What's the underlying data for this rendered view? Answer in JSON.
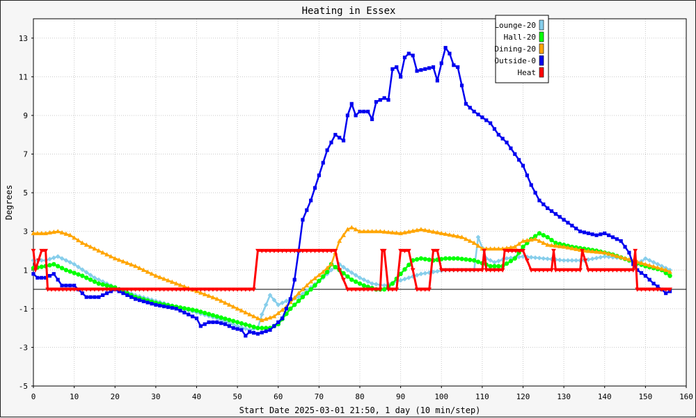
{
  "chart_data": {
    "type": "line",
    "title": "Heating in Essex",
    "xlabel": "Start Date 2025-03-01 21:50, 1 day (10 min/step)",
    "ylabel": "Degrees",
    "xlim": [
      0,
      160
    ],
    "ylim": [
      -5,
      14
    ],
    "x_ticks": [
      0,
      10,
      20,
      30,
      40,
      50,
      60,
      70,
      80,
      90,
      100,
      110,
      120,
      130,
      140,
      150,
      160
    ],
    "y_ticks": [
      -5,
      -3,
      -1,
      1,
      3,
      5,
      7,
      9,
      11,
      13
    ],
    "grid": true,
    "legend_position": "top-right",
    "series": [
      {
        "name": "Lounge-20",
        "color": "#87ceeb",
        "marker": "diamond",
        "points": [
          [
            0,
            1.5
          ],
          [
            3,
            1.5
          ],
          [
            6,
            1.7
          ],
          [
            10,
            1.3
          ],
          [
            15,
            0.6
          ],
          [
            20,
            0.1
          ],
          [
            25,
            -0.3
          ],
          [
            30,
            -0.6
          ],
          [
            35,
            -0.9
          ],
          [
            40,
            -1.2
          ],
          [
            45,
            -1.5
          ],
          [
            50,
            -1.9
          ],
          [
            53,
            -2.1
          ],
          [
            55,
            -2.0
          ],
          [
            56,
            -1.3
          ],
          [
            58,
            -0.3
          ],
          [
            60,
            -0.8
          ],
          [
            62,
            -0.6
          ],
          [
            65,
            -0.4
          ],
          [
            68,
            0.1
          ],
          [
            71,
            0.6
          ],
          [
            73,
            1.0
          ],
          [
            75,
            1.3
          ],
          [
            77,
            1.0
          ],
          [
            80,
            0.6
          ],
          [
            83,
            0.3
          ],
          [
            86,
            0.2
          ],
          [
            89,
            0.4
          ],
          [
            92,
            0.6
          ],
          [
            95,
            0.8
          ],
          [
            98,
            0.9
          ],
          [
            101,
            1.0
          ],
          [
            105,
            1.0
          ],
          [
            108,
            1.0
          ],
          [
            109,
            2.7
          ],
          [
            111,
            1.6
          ],
          [
            113,
            1.4
          ],
          [
            116,
            1.6
          ],
          [
            120,
            1.7
          ],
          [
            125,
            1.6
          ],
          [
            130,
            1.5
          ],
          [
            135,
            1.5
          ],
          [
            140,
            1.7
          ],
          [
            145,
            1.6
          ],
          [
            148,
            1.3
          ],
          [
            150,
            1.6
          ],
          [
            153,
            1.3
          ],
          [
            156,
            1.0
          ]
        ]
      },
      {
        "name": "Hall-20",
        "color": "#00ff00",
        "marker": "circle",
        "points": [
          [
            0,
            1.1
          ],
          [
            3,
            1.2
          ],
          [
            5,
            1.3
          ],
          [
            8,
            1.0
          ],
          [
            12,
            0.7
          ],
          [
            16,
            0.3
          ],
          [
            20,
            0.1
          ],
          [
            25,
            -0.4
          ],
          [
            30,
            -0.7
          ],
          [
            35,
            -0.9
          ],
          [
            40,
            -1.1
          ],
          [
            45,
            -1.4
          ],
          [
            50,
            -1.7
          ],
          [
            55,
            -2.0
          ],
          [
            58,
            -2.0
          ],
          [
            60,
            -1.8
          ],
          [
            63,
            -1.0
          ],
          [
            66,
            -0.4
          ],
          [
            69,
            0.2
          ],
          [
            72,
            0.9
          ],
          [
            73,
            1.3
          ],
          [
            75,
            1.0
          ],
          [
            78,
            0.5
          ],
          [
            81,
            0.2
          ],
          [
            84,
            0.0
          ],
          [
            86,
            0.0
          ],
          [
            88,
            0.3
          ],
          [
            90,
            0.8
          ],
          [
            93,
            1.5
          ],
          [
            95,
            1.6
          ],
          [
            98,
            1.5
          ],
          [
            101,
            1.6
          ],
          [
            104,
            1.6
          ],
          [
            108,
            1.5
          ],
          [
            112,
            1.2
          ],
          [
            115,
            1.2
          ],
          [
            118,
            1.6
          ],
          [
            120,
            2.2
          ],
          [
            122,
            2.6
          ],
          [
            124,
            2.9
          ],
          [
            126,
            2.7
          ],
          [
            128,
            2.4
          ],
          [
            132,
            2.2
          ],
          [
            135,
            2.1
          ],
          [
            138,
            2.0
          ],
          [
            142,
            1.8
          ],
          [
            146,
            1.5
          ],
          [
            150,
            1.2
          ],
          [
            154,
            1.0
          ],
          [
            156,
            0.7
          ]
        ]
      },
      {
        "name": "Dining-20",
        "color": "#ffa500",
        "marker": "triangle",
        "points": [
          [
            0,
            2.9
          ],
          [
            3,
            2.9
          ],
          [
            6,
            3.0
          ],
          [
            9,
            2.8
          ],
          [
            12,
            2.4
          ],
          [
            16,
            2.0
          ],
          [
            20,
            1.6
          ],
          [
            25,
            1.2
          ],
          [
            30,
            0.7
          ],
          [
            35,
            0.3
          ],
          [
            40,
            -0.1
          ],
          [
            45,
            -0.5
          ],
          [
            50,
            -1.0
          ],
          [
            54,
            -1.4
          ],
          [
            56,
            -1.6
          ],
          [
            59,
            -1.4
          ],
          [
            62,
            -0.9
          ],
          [
            65,
            -0.2
          ],
          [
            68,
            0.4
          ],
          [
            71,
            0.9
          ],
          [
            73,
            1.3
          ],
          [
            75,
            2.5
          ],
          [
            77,
            3.1
          ],
          [
            78,
            3.2
          ],
          [
            80,
            3.0
          ],
          [
            85,
            3.0
          ],
          [
            90,
            2.9
          ],
          [
            95,
            3.1
          ],
          [
            100,
            2.9
          ],
          [
            105,
            2.7
          ],
          [
            108,
            2.4
          ],
          [
            110,
            2.1
          ],
          [
            115,
            2.1
          ],
          [
            118,
            2.2
          ],
          [
            120,
            2.5
          ],
          [
            123,
            2.6
          ],
          [
            126,
            2.3
          ],
          [
            130,
            2.2
          ],
          [
            135,
            2.0
          ],
          [
            140,
            1.9
          ],
          [
            145,
            1.6
          ],
          [
            150,
            1.3
          ],
          [
            155,
            1.0
          ],
          [
            156,
            0.9
          ]
        ]
      },
      {
        "name": "Outside-0",
        "color": "#0000ee",
        "marker": "square",
        "points": [
          [
            0,
            0.8
          ],
          [
            1,
            0.6
          ],
          [
            3,
            0.6
          ],
          [
            5,
            0.8
          ],
          [
            6,
            0.5
          ],
          [
            7,
            0.2
          ],
          [
            10,
            0.2
          ],
          [
            13,
            -0.4
          ],
          [
            16,
            -0.4
          ],
          [
            20,
            0.0
          ],
          [
            25,
            -0.5
          ],
          [
            30,
            -0.8
          ],
          [
            35,
            -1.0
          ],
          [
            40,
            -1.5
          ],
          [
            41,
            -1.9
          ],
          [
            43,
            -1.7
          ],
          [
            45,
            -1.7
          ],
          [
            47,
            -1.8
          ],
          [
            49,
            -2.0
          ],
          [
            51,
            -2.1
          ],
          [
            52,
            -2.4
          ],
          [
            53,
            -2.2
          ],
          [
            55,
            -2.3
          ],
          [
            58,
            -2.1
          ],
          [
            61,
            -1.5
          ],
          [
            63,
            -0.5
          ],
          [
            64,
            0.5
          ],
          [
            65,
            2.0
          ],
          [
            66,
            3.6
          ],
          [
            68,
            4.6
          ],
          [
            70,
            5.9
          ],
          [
            72,
            7.2
          ],
          [
            74,
            8.0
          ],
          [
            76,
            7.7
          ],
          [
            77,
            9.0
          ],
          [
            78,
            9.6
          ],
          [
            79,
            9.0
          ],
          [
            80,
            9.2
          ],
          [
            82,
            9.2
          ],
          [
            83,
            8.8
          ],
          [
            84,
            9.7
          ],
          [
            86,
            9.9
          ],
          [
            87,
            9.8
          ],
          [
            88,
            11.4
          ],
          [
            89,
            11.5
          ],
          [
            90,
            11.0
          ],
          [
            91,
            12.0
          ],
          [
            92,
            12.2
          ],
          [
            93,
            12.1
          ],
          [
            94,
            11.3
          ],
          [
            96,
            11.4
          ],
          [
            98,
            11.5
          ],
          [
            99,
            10.8
          ],
          [
            100,
            11.7
          ],
          [
            101,
            12.5
          ],
          [
            102,
            12.2
          ],
          [
            103,
            11.6
          ],
          [
            104,
            11.5
          ],
          [
            106,
            9.6
          ],
          [
            108,
            9.2
          ],
          [
            110,
            8.9
          ],
          [
            112,
            8.6
          ],
          [
            114,
            8.0
          ],
          [
            116,
            7.6
          ],
          [
            118,
            7.0
          ],
          [
            120,
            6.4
          ],
          [
            122,
            5.4
          ],
          [
            124,
            4.6
          ],
          [
            126,
            4.2
          ],
          [
            128,
            3.9
          ],
          [
            130,
            3.6
          ],
          [
            132,
            3.3
          ],
          [
            134,
            3.0
          ],
          [
            136,
            2.9
          ],
          [
            138,
            2.8
          ],
          [
            140,
            2.9
          ],
          [
            142,
            2.7
          ],
          [
            144,
            2.5
          ],
          [
            146,
            1.9
          ],
          [
            147,
            1.3
          ],
          [
            148,
            1.0
          ],
          [
            150,
            0.7
          ],
          [
            152,
            0.3
          ],
          [
            154,
            0.0
          ],
          [
            155,
            -0.2
          ],
          [
            156,
            -0.1
          ]
        ]
      },
      {
        "name": "Heat",
        "color": "#ff0000",
        "marker": "triangle-down",
        "points": [
          [
            0,
            2.0
          ],
          [
            0.5,
            1.0
          ],
          [
            2,
            2.0
          ],
          [
            3,
            2.0
          ],
          [
            3.5,
            0.0
          ],
          [
            10,
            0.0
          ],
          [
            20,
            0.0
          ],
          [
            30,
            0.0
          ],
          [
            40,
            0.0
          ],
          [
            50,
            0.0
          ],
          [
            54,
            0.0
          ],
          [
            55,
            2.0
          ],
          [
            60,
            2.0
          ],
          [
            70,
            2.0
          ],
          [
            74,
            2.0
          ],
          [
            75,
            1.0
          ],
          [
            77,
            0.0
          ],
          [
            85,
            0.0
          ],
          [
            85.5,
            2.0
          ],
          [
            86,
            2.0
          ],
          [
            87,
            0.0
          ],
          [
            89,
            0.0
          ],
          [
            90,
            2.0
          ],
          [
            92,
            2.0
          ],
          [
            94,
            0.0
          ],
          [
            97,
            0.0
          ],
          [
            98,
            2.0
          ],
          [
            99,
            2.0
          ],
          [
            100,
            1.0
          ],
          [
            105,
            1.0
          ],
          [
            110,
            1.0
          ],
          [
            110.5,
            2.0
          ],
          [
            111,
            1.0
          ],
          [
            115,
            1.0
          ],
          [
            115.5,
            2.0
          ],
          [
            120,
            2.0
          ],
          [
            122,
            1.0
          ],
          [
            127,
            1.0
          ],
          [
            127.5,
            2.0
          ],
          [
            128,
            1.0
          ],
          [
            134,
            1.0
          ],
          [
            134.5,
            2.0
          ],
          [
            136,
            1.0
          ],
          [
            140,
            1.0
          ],
          [
            147,
            1.0
          ],
          [
            147.5,
            2.0
          ],
          [
            148,
            0.0
          ],
          [
            156,
            0.0
          ]
        ]
      }
    ]
  }
}
